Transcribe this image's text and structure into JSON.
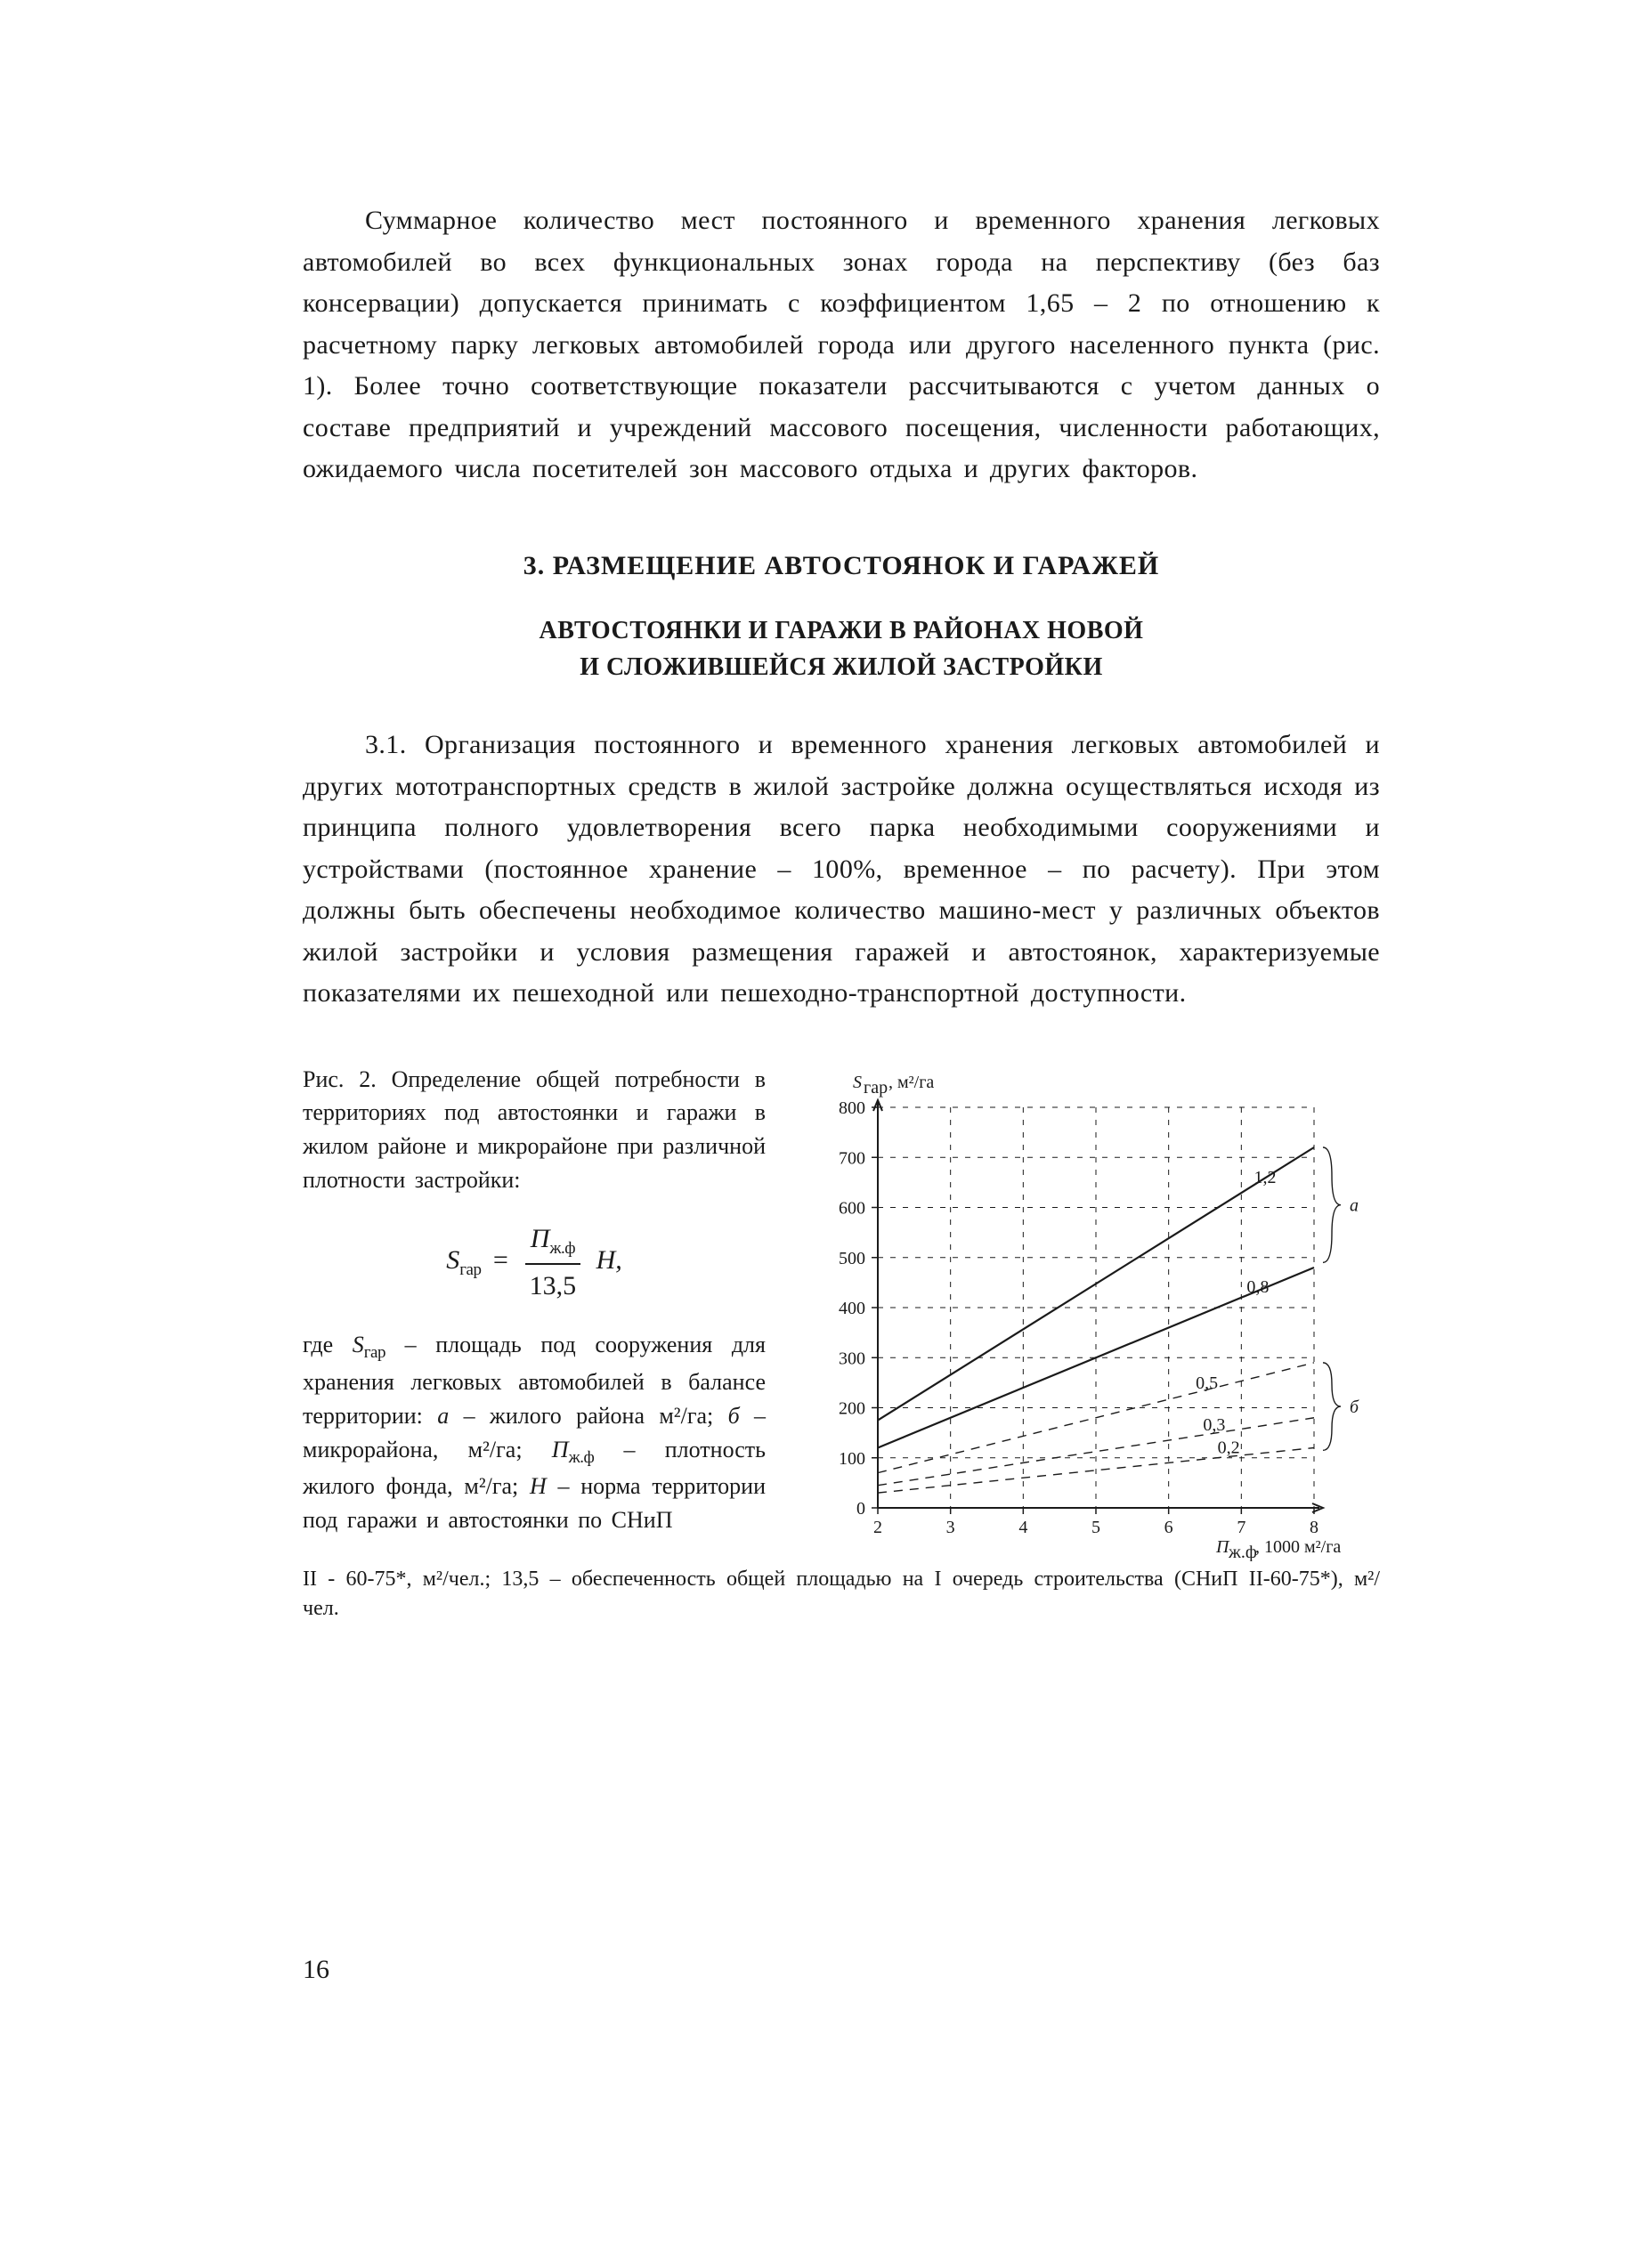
{
  "colors": {
    "text": "#1a1a1a",
    "background": "#ffffff",
    "axis": "#1a1a1a",
    "grid": "#1a1a1a"
  },
  "typography": {
    "body_family": "Times New Roman",
    "body_size_pt": 11,
    "heading_weight": "bold",
    "caption_size_pt": 9
  },
  "paragraphs": {
    "p1": "Суммарное количество мест постоянного и временного хранения легковых автомобилей во всех функциональных зонах города на перспективу (без баз консервации) допускается принимать с коэффициентом 1,65 – 2 по отношению к расчетному парку легковых автомобилей города или другого населенного пункта (рис. 1). Более точно соответствующие показатели рассчитываются с учетом данных о составе предприятий и учреждений массового посещения, численности работающих, ожидаемого числа посетителей зон массового отдыха и других факторов."
  },
  "headings": {
    "section": "3.  РАЗМЕЩЕНИЕ АВТОСТОЯНОК И ГАРАЖЕЙ",
    "subsection_l1": "АВТОСТОЯНКИ И ГАРАЖИ В РАЙОНАХ НОВОЙ",
    "subsection_l2": "И СЛОЖИВШЕЙСЯ ЖИЛОЙ ЗАСТРОЙКИ"
  },
  "paragraphs2": {
    "p2": "3.1. Организация постоянного и временного хранения легковых автомобилей и других мототранспортных средств в жилой застройке должна осуществляться исходя из принципа полного удовлетворения всего парка необходимыми сооружениями и устройствами (постоянное хранение – 100%, временное – по расчету). При этом должны быть обеспечены необходимое количество машино-мест у различных объектов жилой застройки и условия размещения гаражей и автостоянок, характеризуемые показателями их пешеходной или пешеходно-транспортной доступности."
  },
  "figure": {
    "caption_head": "Рис. 2.  Определение общей потребности в территориях под автостоянки и гаражи в жилом районе и микрорайоне при различной плотности застройки:",
    "formula": {
      "lhs": "S",
      "lhs_sub": "гар",
      "num": "П",
      "num_sub": "ж.ф",
      "den": "13,5",
      "rhs": "Н",
      "trail": ","
    },
    "caption_body_prefix": "где ",
    "caption_body": " – площадь под сооружения для хранения легковых автомобилей в балансе территории: ",
    "caption_a": "а",
    "caption_a_text": " – жилого района м²/га; ",
    "caption_b": "б",
    "caption_b_text": " – микрорайона, м²/га; ",
    "caption_P": "П",
    "caption_P_sub": "ж.ф",
    "caption_P_text": " – плотность жилого фонда, м²/га; ",
    "caption_H": "Н",
    "caption_H_text": " – норма территории под гаражи и автостоянки по СНиП",
    "footer": "II - 60-75*, м²/чел.; 13,5 – обеспеченность общей площадью на I очередь строительства (СНиП II-60-75*), м²/чел.",
    "chart": {
      "type": "line",
      "y_axis_label": "Sгар, м²/га",
      "x_axis_label": "Пж.ф, 1000 м²/га",
      "xlim": [
        2,
        8
      ],
      "ylim": [
        0,
        800
      ],
      "xticks": [
        2,
        3,
        4,
        5,
        6,
        7,
        8
      ],
      "yticks": [
        0,
        100,
        200,
        300,
        400,
        500,
        600,
        700,
        800
      ],
      "grid_style": "dashed",
      "background_color": "#ffffff",
      "grid_color": "#1a1a1a",
      "axis_color": "#1a1a1a",
      "axis_width": 2,
      "line_width_solid": 2.2,
      "line_width_dashed": 1.4,
      "annotation_a": "а",
      "annotation_b": "б",
      "inline_labels": [
        "0,2",
        "0,3",
        "0,5",
        "0,8",
        "1,2"
      ],
      "series": [
        {
          "label": "1,2",
          "group": "a",
          "style": "solid",
          "points": [
            [
              2,
              175
            ],
            [
              8,
              720
            ]
          ]
        },
        {
          "label": "0,8",
          "group": "a",
          "style": "solid",
          "points": [
            [
              2,
              120
            ],
            [
              8,
              480
            ]
          ]
        },
        {
          "label": "0,5",
          "group": "b",
          "style": "dashed",
          "points": [
            [
              2,
              70
            ],
            [
              8,
              290
            ]
          ]
        },
        {
          "label": "0,3",
          "group": "b",
          "style": "dashed",
          "points": [
            [
              2,
              45
            ],
            [
              8,
              180
            ]
          ]
        },
        {
          "label": "0,2",
          "group": "b",
          "style": "dashed",
          "points": [
            [
              2,
              30
            ],
            [
              8,
              120
            ]
          ]
        }
      ],
      "brace_a_y": [
        490,
        720
      ],
      "brace_b_y": [
        115,
        290
      ]
    }
  },
  "page_number": "16"
}
